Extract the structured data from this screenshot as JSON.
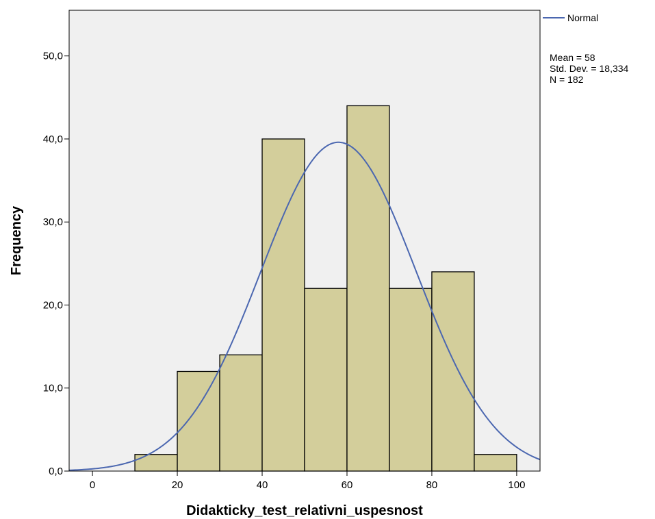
{
  "chart_data": {
    "type": "bar",
    "subtype": "histogram",
    "xlabel": "Didakticky_test_relativni_uspesnost",
    "ylabel": "Frequency",
    "xlim": [
      -5.5,
      105.5
    ],
    "ylim": [
      0,
      55.5
    ],
    "x_ticks": [
      {
        "value": 0,
        "label": "0"
      },
      {
        "value": 20,
        "label": "20"
      },
      {
        "value": 40,
        "label": "40"
      },
      {
        "value": 60,
        "label": "60"
      },
      {
        "value": 80,
        "label": "80"
      },
      {
        "value": 100,
        "label": "100"
      }
    ],
    "y_ticks": [
      {
        "value": 0,
        "label": "0,0"
      },
      {
        "value": 10,
        "label": "10,0"
      },
      {
        "value": 20,
        "label": "20,0"
      },
      {
        "value": 30,
        "label": "30,0"
      },
      {
        "value": 40,
        "label": "40,0"
      },
      {
        "value": 50,
        "label": "50,0"
      }
    ],
    "bins": [
      {
        "start": 10,
        "end": 20,
        "count": 2
      },
      {
        "start": 20,
        "end": 30,
        "count": 12
      },
      {
        "start": 30,
        "end": 40,
        "count": 14
      },
      {
        "start": 40,
        "end": 50,
        "count": 40
      },
      {
        "start": 50,
        "end": 60,
        "count": 22
      },
      {
        "start": 60,
        "end": 70,
        "count": 44
      },
      {
        "start": 70,
        "end": 80,
        "count": 22
      },
      {
        "start": 80,
        "end": 90,
        "count": 24
      },
      {
        "start": 90,
        "end": 100,
        "count": 2
      }
    ],
    "normal_curve": {
      "mean": 58,
      "std_dev": 18.334,
      "n": 182,
      "bin_width": 10
    },
    "legend": {
      "placement": "right",
      "series_name": "Normal",
      "stats": [
        "Mean = 58",
        "Std. Dev. = 18,334",
        "N = 182"
      ]
    },
    "grid": false,
    "colors": {
      "plot_background": "#f0f0f0",
      "bar_fill": "#d3ce9b",
      "bar_stroke": "#000000",
      "curve": "#4b67b0"
    }
  }
}
